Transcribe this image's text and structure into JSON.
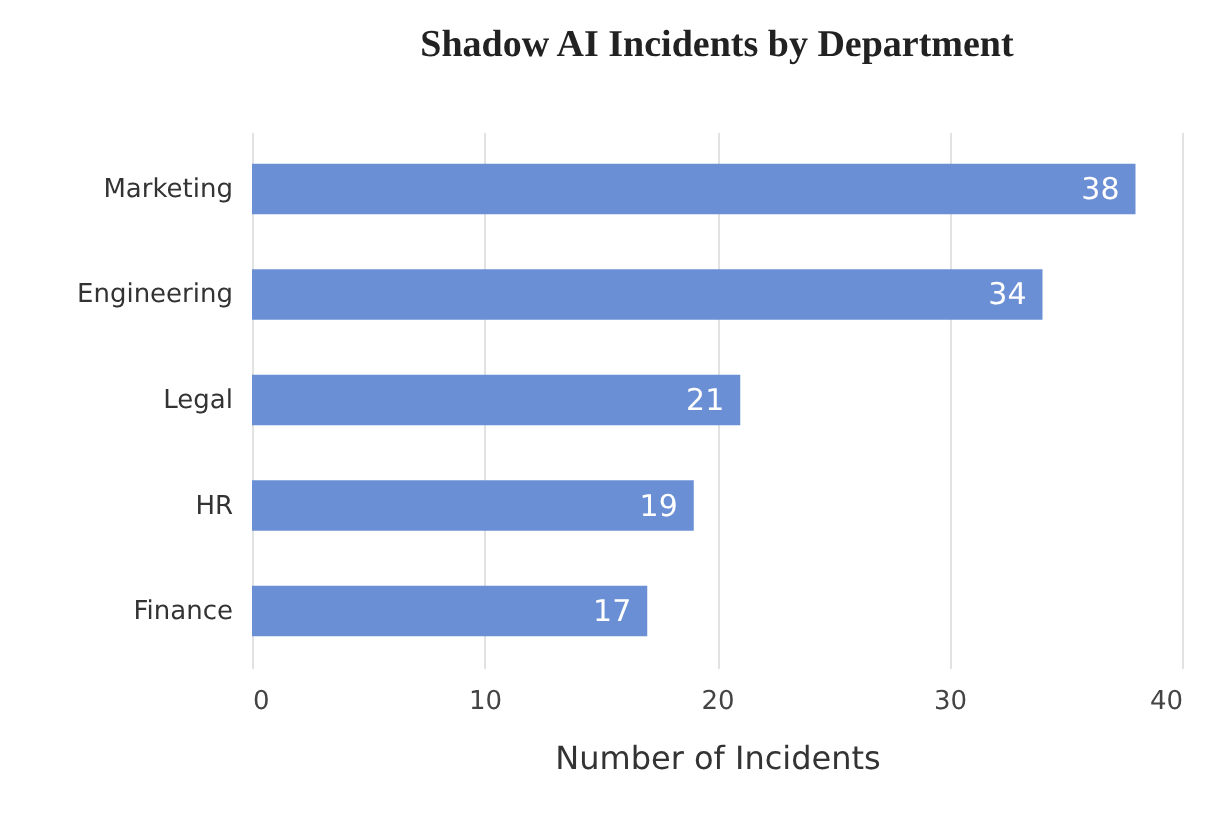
{
  "chart_data": {
    "type": "bar",
    "orientation": "horizontal",
    "title": "Shadow AI Incidents by Department",
    "xlabel": "Number of Incidents",
    "categories": [
      "Marketing",
      "Engineering",
      "Legal",
      "HR",
      "Finance"
    ],
    "values": [
      38,
      34,
      21,
      19,
      17
    ],
    "color": "#6b8fd4",
    "xlim": [
      0,
      40
    ],
    "xticks": [
      0,
      10,
      20,
      30,
      40
    ],
    "grid": "x",
    "data_labels": true
  }
}
